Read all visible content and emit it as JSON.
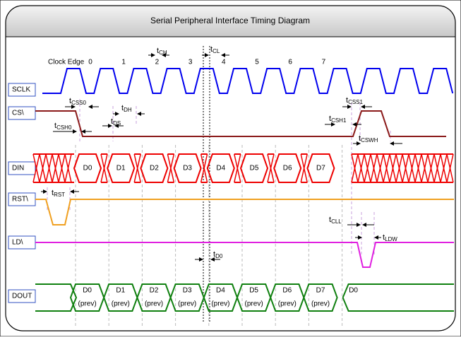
{
  "title": "Serial Peripheral Interface Timing Diagram",
  "signals": [
    "SCLK",
    "CS\\",
    "DIN",
    "RST\\",
    "LD\\",
    "DOUT"
  ],
  "clock_edge_label": "Clock Edge",
  "clock_edges": [
    "0",
    "1",
    "2",
    "3",
    "4",
    "5",
    "6",
    "7"
  ],
  "din_bits": [
    "D0",
    "D1",
    "D2",
    "D3",
    "D4",
    "D5",
    "D6",
    "D7"
  ],
  "dout_bits": [
    "D0",
    "D1",
    "D2",
    "D3",
    "D4",
    "D5",
    "D6",
    "D7",
    "D0"
  ],
  "dout_prev": [
    "(prev)",
    "(prev)",
    "(prev)",
    "(prev)",
    "(prev)",
    "(prev)",
    "(prev)",
    "(prev)"
  ],
  "timings": [
    {
      "t": "t",
      "sub": "CH"
    },
    {
      "t": "t",
      "sub": "CL"
    },
    {
      "t": "t",
      "sub": "CSS0"
    },
    {
      "t": "t",
      "sub": "DH"
    },
    {
      "t": "t",
      "sub": "DS"
    },
    {
      "t": "t",
      "sub": "CSH0"
    },
    {
      "t": "t",
      "sub": "CSS1"
    },
    {
      "t": "t",
      "sub": "CSH1"
    },
    {
      "t": "t",
      "sub": "CSWH"
    },
    {
      "t": "t",
      "sub": "RST"
    },
    {
      "t": "t",
      "sub": "CLL"
    },
    {
      "t": "t",
      "sub": "LDW"
    },
    {
      "t": "t",
      "sub": "D0"
    }
  ]
}
